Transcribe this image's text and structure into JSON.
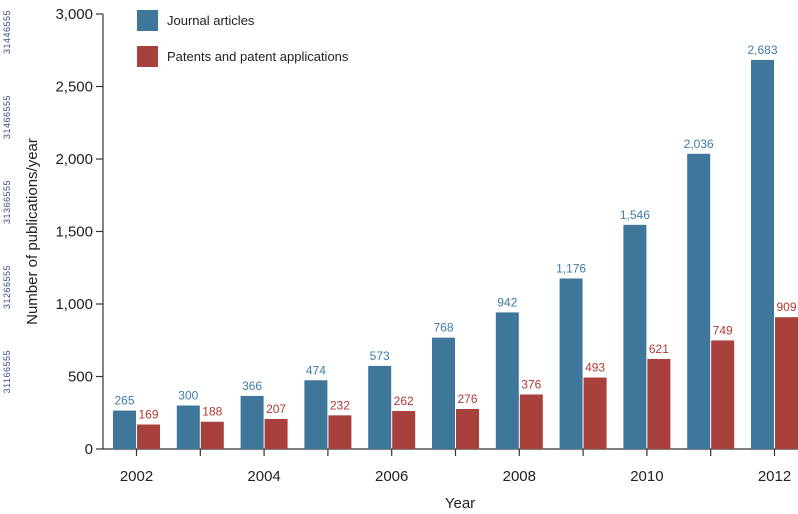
{
  "side_marks": [
    "31446555",
    "31466555",
    "31366555",
    "31266555",
    "31166555"
  ],
  "chart_data": {
    "type": "bar",
    "categories": [
      "2002",
      "2003",
      "2004",
      "2005",
      "2006",
      "2007",
      "2008",
      "2009",
      "2010",
      "2011",
      "2012"
    ],
    "x_tick_labels": [
      "2002",
      "2004",
      "2006",
      "2008",
      "2010",
      "2012"
    ],
    "series": [
      {
        "name": "Journal articles",
        "color": "#3e7799",
        "values": [
          265,
          300,
          366,
          474,
          573,
          768,
          942,
          1176,
          1546,
          2036,
          2683
        ],
        "labels": [
          "265",
          "300",
          "366",
          "474",
          "573",
          "768",
          "942",
          "1,176",
          "1,546",
          "2,036",
          "2,683"
        ],
        "label_color": "#3e7ca8"
      },
      {
        "name": "Patents and patent applications",
        "color": "#a8413b",
        "values": [
          169,
          188,
          207,
          232,
          262,
          276,
          376,
          493,
          621,
          749,
          909
        ],
        "labels": [
          "169",
          "188",
          "207",
          "232",
          "262",
          "276",
          "376",
          "493",
          "621",
          "749",
          "909"
        ],
        "label_color": "#b03a33"
      }
    ],
    "xlabel": "Year",
    "ylabel": "Number of publications/year",
    "ylim": [
      0,
      3000
    ],
    "yticks": [
      0,
      500,
      1000,
      1500,
      2000,
      2500,
      3000
    ],
    "ytick_labels": [
      "0",
      "500",
      "1,000",
      "1,500",
      "2,000",
      "2,500",
      "3,000"
    ],
    "grid": false,
    "legend_position": "top-left"
  }
}
